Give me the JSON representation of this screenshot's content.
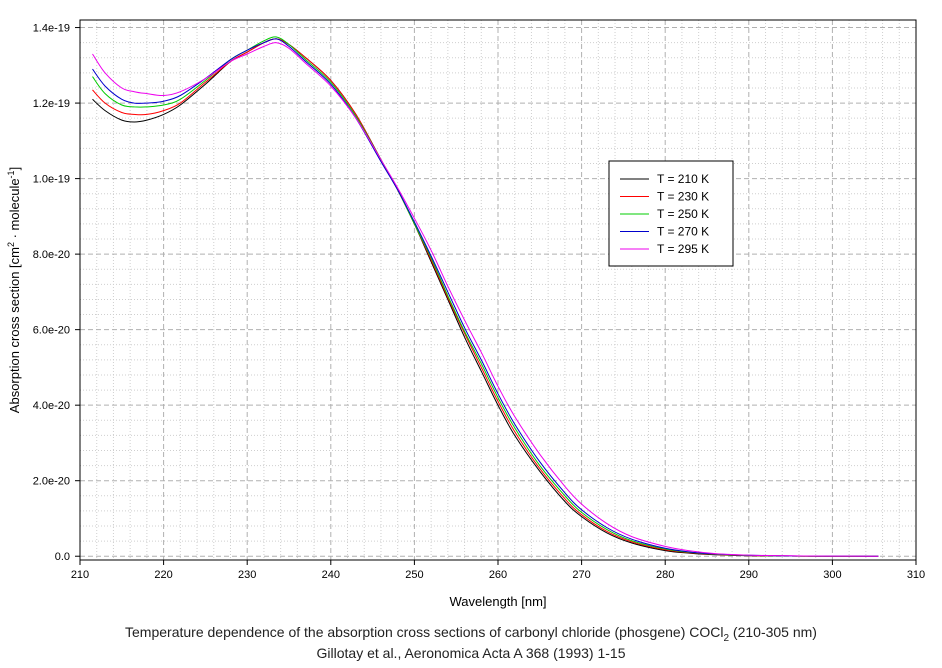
{
  "chart_data": {
    "type": "line",
    "title": "",
    "xlabel": "Wavelength [nm]",
    "ylabel": {
      "main": "Absorption cross section [cm",
      "sup1": "2",
      "mid": " · molecule",
      "sup2": "-1",
      "end": "]"
    },
    "xlim": [
      210,
      310
    ],
    "ylim": [
      -1e-21,
      1.42e-19
    ],
    "x_ticks": [
      210,
      220,
      230,
      240,
      250,
      260,
      270,
      280,
      290,
      300,
      310
    ],
    "y_ticks": [
      0,
      2e-20,
      4e-20,
      6e-20,
      8e-20,
      1e-19,
      1.2e-19,
      1.4e-19
    ],
    "y_tick_labels": [
      "0.0",
      "2.0e-20",
      "4.0e-20",
      "6.0e-20",
      "8.0e-20",
      "1.0e-19",
      "1.2e-19",
      "1.4e-19"
    ],
    "grid": true,
    "legend_position": "center-right",
    "series": [
      {
        "name": "T = 210 K",
        "color": "#000000",
        "x": [
          211.5,
          213,
          215,
          216.5,
          218,
          220,
          222,
          225,
          228,
          230,
          232,
          233.5,
          235,
          237,
          240,
          243,
          246,
          248,
          250,
          252,
          254,
          256,
          258,
          260,
          262,
          265,
          268,
          270,
          273,
          276,
          280,
          283,
          286,
          290,
          295,
          300,
          305.5
        ],
        "y": [
          1.21e-19,
          1.18e-19,
          1.155e-19,
          1.15e-19,
          1.155e-19,
          1.17e-19,
          1.195e-19,
          1.25e-19,
          1.31e-19,
          1.335e-19,
          1.36e-19,
          1.37e-19,
          1.355e-19,
          1.32e-19,
          1.26e-19,
          1.17e-19,
          1.05e-19,
          9.7e-20,
          8.8e-20,
          7.8e-20,
          6.8e-20,
          5.8e-20,
          4.9e-20,
          4e-20,
          3.2e-20,
          2.25e-20,
          1.45e-20,
          1.05e-20,
          6.2e-21,
          3.5e-21,
          1.5e-21,
          8e-22,
          4e-22,
          1.5e-22,
          5e-23,
          1e-23,
          0
        ]
      },
      {
        "name": "T = 230 K",
        "color": "#ff0000",
        "x": [
          211.5,
          213,
          215,
          216.5,
          218,
          220,
          222,
          225,
          228,
          230,
          232,
          233.5,
          235,
          237,
          240,
          243,
          246,
          248,
          250,
          252,
          254,
          256,
          258,
          260,
          262,
          265,
          268,
          270,
          273,
          276,
          280,
          283,
          286,
          290,
          295,
          300,
          305.5
        ],
        "y": [
          1.235e-19,
          1.2e-19,
          1.175e-19,
          1.17e-19,
          1.17e-19,
          1.18e-19,
          1.2e-19,
          1.255e-19,
          1.31e-19,
          1.335e-19,
          1.36e-19,
          1.37e-19,
          1.355e-19,
          1.32e-19,
          1.26e-19,
          1.17e-19,
          1.05e-19,
          9.7e-20,
          8.8e-20,
          7.85e-20,
          6.85e-20,
          5.9e-20,
          5e-20,
          4.1e-20,
          3.3e-20,
          2.32e-20,
          1.52e-20,
          1.1e-20,
          6.6e-21,
          3.8e-21,
          1.7e-21,
          9e-22,
          4.5e-22,
          1.7e-22,
          6e-23,
          1e-23,
          0
        ]
      },
      {
        "name": "T = 250 K",
        "color": "#00cc00",
        "x": [
          211.5,
          213,
          215,
          216.5,
          218,
          220,
          222,
          225,
          228,
          230,
          232,
          233.5,
          235,
          237,
          240,
          243,
          246,
          248,
          250,
          252,
          254,
          256,
          258,
          260,
          262,
          265,
          268,
          270,
          273,
          276,
          280,
          283,
          286,
          290,
          295,
          300,
          305.5
        ],
        "y": [
          1.27e-19,
          1.225e-19,
          1.195e-19,
          1.19e-19,
          1.19e-19,
          1.195e-19,
          1.21e-19,
          1.26e-19,
          1.315e-19,
          1.34e-19,
          1.365e-19,
          1.375e-19,
          1.355e-19,
          1.315e-19,
          1.255e-19,
          1.165e-19,
          1.05e-19,
          9.7e-20,
          8.8e-20,
          7.9e-20,
          6.9e-20,
          5.95e-20,
          5.1e-20,
          4.2e-20,
          3.4e-20,
          2.4e-20,
          1.6e-20,
          1.16e-20,
          7.1e-21,
          4.1e-21,
          1.9e-21,
          1e-21,
          5e-22,
          2e-22,
          7e-23,
          1.5e-23,
          0
        ]
      },
      {
        "name": "T = 270 K",
        "color": "#0000cc",
        "x": [
          211.5,
          213,
          215,
          216.5,
          218,
          220,
          222,
          225,
          228,
          230,
          232,
          233.5,
          235,
          237,
          240,
          243,
          246,
          248,
          250,
          252,
          254,
          256,
          258,
          260,
          262,
          265,
          268,
          270,
          273,
          276,
          280,
          283,
          286,
          290,
          295,
          300,
          305.5
        ],
        "y": [
          1.29e-19,
          1.245e-19,
          1.21e-19,
          1.2e-19,
          1.2e-19,
          1.205e-19,
          1.22e-19,
          1.265e-19,
          1.315e-19,
          1.34e-19,
          1.36e-19,
          1.37e-19,
          1.35e-19,
          1.31e-19,
          1.25e-19,
          1.16e-19,
          1.045e-19,
          9.7e-20,
          8.85e-20,
          7.95e-20,
          7e-20,
          6.05e-20,
          5.2e-20,
          4.3e-20,
          3.5e-20,
          2.5e-20,
          1.68e-20,
          1.23e-20,
          7.6e-21,
          4.5e-21,
          2.1e-21,
          1.1e-21,
          6e-22,
          2.5e-22,
          8e-23,
          2e-23,
          0
        ]
      },
      {
        "name": "T = 295 K",
        "color": "#ee00ee",
        "x": [
          211.5,
          213,
          215,
          216.5,
          218,
          220,
          222,
          225,
          228,
          230,
          232,
          233.5,
          235,
          237,
          240,
          243,
          246,
          248,
          250,
          252,
          254,
          256,
          258,
          260,
          262,
          265,
          268,
          270,
          273,
          276,
          280,
          283,
          286,
          290,
          295,
          300,
          305.5
        ],
        "y": [
          1.33e-19,
          1.28e-19,
          1.24e-19,
          1.23e-19,
          1.225e-19,
          1.22e-19,
          1.23e-19,
          1.265e-19,
          1.31e-19,
          1.33e-19,
          1.35e-19,
          1.36e-19,
          1.345e-19,
          1.305e-19,
          1.245e-19,
          1.16e-19,
          1.05e-19,
          9.75e-20,
          8.95e-20,
          8.1e-20,
          7.15e-20,
          6.25e-20,
          5.4e-20,
          4.5e-20,
          3.7e-20,
          2.7e-20,
          1.85e-20,
          1.38e-20,
          8.7e-21,
          5.2e-21,
          2.6e-21,
          1.4e-21,
          7e-22,
          3e-22,
          1e-22,
          2.5e-23,
          0
        ]
      }
    ]
  },
  "caption": {
    "line1_main": "Temperature dependence of the absorption cross sections of carbonyl chloride (phosgene) COCl",
    "line1_sub": "2",
    "line1_end": " (210-305 nm)",
    "line2": "Gillotay et al., Aeronomica Acta A 368 (1993) 1-15"
  }
}
